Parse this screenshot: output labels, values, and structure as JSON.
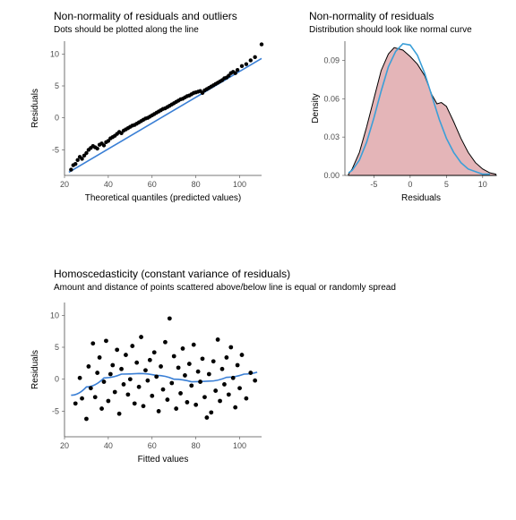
{
  "qq": {
    "type": "scatter",
    "title": "Non-normality of residuals and outliers",
    "subtitle": "Dots should be plotted along the line",
    "xlabel": "Theoretical quantiles (predicted values)",
    "ylabel": "Residuals",
    "xlim": [
      20,
      110
    ],
    "ylim": [
      -9,
      12
    ],
    "xticks": [
      20,
      40,
      60,
      80,
      100
    ],
    "yticks": [
      -5,
      0,
      5,
      10
    ],
    "point_color": "#000000",
    "point_size": 2.2,
    "line_color": "#3a7fd5",
    "line_width": 1.6,
    "background": "#ffffff",
    "grid_color": "#ffffff",
    "points": [
      [
        23,
        -8.1
      ],
      [
        24,
        -7.4
      ],
      [
        25,
        -7.2
      ],
      [
        26,
        -6.6
      ],
      [
        27,
        -6.1
      ],
      [
        28,
        -6.4
      ],
      [
        29,
        -5.9
      ],
      [
        30,
        -5.5
      ],
      [
        31,
        -5.0
      ],
      [
        32,
        -4.7
      ],
      [
        33,
        -4.4
      ],
      [
        34,
        -4.6
      ],
      [
        35,
        -4.8
      ],
      [
        36,
        -4.2
      ],
      [
        37,
        -4.0
      ],
      [
        38,
        -4.3
      ],
      [
        39,
        -3.8
      ],
      [
        40,
        -3.6
      ],
      [
        41,
        -3.2
      ],
      [
        42,
        -3.0
      ],
      [
        43,
        -2.8
      ],
      [
        44,
        -2.5
      ],
      [
        45,
        -2.2
      ],
      [
        46,
        -2.4
      ],
      [
        47,
        -2.0
      ],
      [
        48,
        -1.8
      ],
      [
        49,
        -1.6
      ],
      [
        50,
        -1.4
      ],
      [
        51,
        -1.2
      ],
      [
        52,
        -1.1
      ],
      [
        53,
        -0.9
      ],
      [
        54,
        -0.7
      ],
      [
        55,
        -0.5
      ],
      [
        56,
        -0.3
      ],
      [
        57,
        -0.1
      ],
      [
        58,
        0.0
      ],
      [
        59,
        0.2
      ],
      [
        60,
        0.4
      ],
      [
        61,
        0.6
      ],
      [
        62,
        0.8
      ],
      [
        63,
        1.0
      ],
      [
        64,
        1.2
      ],
      [
        65,
        1.4
      ],
      [
        66,
        1.5
      ],
      [
        67,
        1.7
      ],
      [
        68,
        1.9
      ],
      [
        69,
        2.1
      ],
      [
        70,
        2.3
      ],
      [
        71,
        2.5
      ],
      [
        72,
        2.7
      ],
      [
        73,
        2.9
      ],
      [
        74,
        3.0
      ],
      [
        75,
        3.2
      ],
      [
        76,
        3.4
      ],
      [
        77,
        3.5
      ],
      [
        78,
        3.7
      ],
      [
        79,
        3.9
      ],
      [
        80,
        4.0
      ],
      [
        81,
        4.1
      ],
      [
        82,
        4.2
      ],
      [
        83,
        3.9
      ],
      [
        84,
        4.3
      ],
      [
        85,
        4.5
      ],
      [
        86,
        4.7
      ],
      [
        87,
        4.9
      ],
      [
        88,
        5.1
      ],
      [
        89,
        5.3
      ],
      [
        90,
        5.5
      ],
      [
        91,
        5.7
      ],
      [
        92,
        5.9
      ],
      [
        93,
        6.2
      ],
      [
        94,
        6.3
      ],
      [
        95,
        6.6
      ],
      [
        96,
        7.0
      ],
      [
        97,
        7.2
      ],
      [
        98,
        7.0
      ],
      [
        99,
        7.5
      ],
      [
        101,
        8.1
      ],
      [
        103,
        8.4
      ],
      [
        105,
        9.0
      ],
      [
        107,
        9.5
      ],
      [
        110,
        11.5
      ]
    ],
    "line": [
      [
        22,
        -8.5
      ],
      [
        110,
        9.3
      ]
    ]
  },
  "density": {
    "type": "density",
    "title": "Non-normality of residuals",
    "subtitle": "Distribution should look like normal curve",
    "xlabel": "Residuals",
    "ylabel": "Density",
    "xlim": [
      -9,
      12
    ],
    "ylim": [
      0,
      0.105
    ],
    "xticks": [
      -5,
      0,
      5,
      10
    ],
    "yticks": [
      0.0,
      0.03,
      0.06,
      0.09
    ],
    "fill_color": "#e4b5b8",
    "fill_outline": "#000000",
    "curve_color": "#3a9fd8",
    "curve_width": 1.6,
    "background": "#ffffff",
    "density_pts": [
      [
        -8.5,
        0.001
      ],
      [
        -8,
        0.005
      ],
      [
        -7,
        0.018
      ],
      [
        -6,
        0.038
      ],
      [
        -5,
        0.06
      ],
      [
        -4,
        0.082
      ],
      [
        -3,
        0.095
      ],
      [
        -2.2,
        0.1
      ],
      [
        -1,
        0.098
      ],
      [
        0,
        0.093
      ],
      [
        1,
        0.087
      ],
      [
        2,
        0.078
      ],
      [
        3,
        0.063
      ],
      [
        3.7,
        0.056
      ],
      [
        4.3,
        0.057
      ],
      [
        5,
        0.054
      ],
      [
        6,
        0.042
      ],
      [
        7,
        0.029
      ],
      [
        8,
        0.018
      ],
      [
        9,
        0.01
      ],
      [
        10,
        0.005
      ],
      [
        11,
        0.002
      ],
      [
        11.8,
        0.001
      ]
    ],
    "normal_pts": [
      [
        -8.5,
        0.002
      ],
      [
        -8,
        0.004
      ],
      [
        -7,
        0.012
      ],
      [
        -6,
        0.026
      ],
      [
        -5,
        0.045
      ],
      [
        -4,
        0.066
      ],
      [
        -3,
        0.085
      ],
      [
        -2,
        0.097
      ],
      [
        -1,
        0.103
      ],
      [
        0,
        0.102
      ],
      [
        1,
        0.094
      ],
      [
        2,
        0.08
      ],
      [
        3,
        0.062
      ],
      [
        4,
        0.044
      ],
      [
        5,
        0.029
      ],
      [
        6,
        0.018
      ],
      [
        7,
        0.01
      ],
      [
        8,
        0.005
      ],
      [
        9,
        0.003
      ],
      [
        10,
        0.001
      ],
      [
        11,
        0.001
      ]
    ]
  },
  "homo": {
    "type": "scatter",
    "title": "Homoscedasticity (constant variance of residuals)",
    "subtitle": "Amount and distance of points scattered above/below line is equal or randomly spread",
    "xlabel": "Fitted values",
    "ylabel": "Residuals",
    "xlim": [
      20,
      110
    ],
    "ylim": [
      -9,
      12
    ],
    "xticks": [
      20,
      40,
      60,
      80,
      100
    ],
    "yticks": [
      -5,
      0,
      5,
      10
    ],
    "point_color": "#000000",
    "point_size": 2.4,
    "line_color": "#3a7fd5",
    "line_width": 1.6,
    "background": "#ffffff",
    "points": [
      [
        25,
        -3.8
      ],
      [
        27,
        0.2
      ],
      [
        28,
        -3.0
      ],
      [
        30,
        -6.2
      ],
      [
        31,
        2.0
      ],
      [
        32,
        -1.4
      ],
      [
        33,
        5.6
      ],
      [
        34,
        -2.8
      ],
      [
        35,
        1.0
      ],
      [
        36,
        3.4
      ],
      [
        37,
        -4.6
      ],
      [
        38,
        -0.4
      ],
      [
        39,
        6.0
      ],
      [
        40,
        -3.4
      ],
      [
        41,
        0.8
      ],
      [
        42,
        2.2
      ],
      [
        43,
        -2.0
      ],
      [
        44,
        4.6
      ],
      [
        45,
        -5.4
      ],
      [
        46,
        1.6
      ],
      [
        47,
        -0.8
      ],
      [
        48,
        3.8
      ],
      [
        49,
        -2.4
      ],
      [
        50,
        0.0
      ],
      [
        51,
        5.2
      ],
      [
        52,
        -3.8
      ],
      [
        53,
        2.6
      ],
      [
        54,
        -1.2
      ],
      [
        55,
        6.6
      ],
      [
        56,
        -4.2
      ],
      [
        57,
        1.4
      ],
      [
        58,
        -0.2
      ],
      [
        59,
        3.0
      ],
      [
        60,
        -2.6
      ],
      [
        61,
        4.2
      ],
      [
        62,
        0.4
      ],
      [
        63,
        -5.0
      ],
      [
        64,
        2.0
      ],
      [
        65,
        -1.6
      ],
      [
        66,
        5.8
      ],
      [
        67,
        -3.2
      ],
      [
        68,
        9.5
      ],
      [
        69,
        -0.6
      ],
      [
        70,
        3.6
      ],
      [
        71,
        -4.6
      ],
      [
        72,
        1.8
      ],
      [
        73,
        -2.2
      ],
      [
        74,
        4.8
      ],
      [
        75,
        0.6
      ],
      [
        76,
        -3.6
      ],
      [
        77,
        2.4
      ],
      [
        78,
        -1.0
      ],
      [
        79,
        5.4
      ],
      [
        80,
        -4.0
      ],
      [
        81,
        1.2
      ],
      [
        82,
        -0.4
      ],
      [
        83,
        3.2
      ],
      [
        84,
        -2.8
      ],
      [
        85,
        -6.0
      ],
      [
        86,
        0.8
      ],
      [
        87,
        -5.2
      ],
      [
        88,
        2.8
      ],
      [
        89,
        -1.8
      ],
      [
        90,
        6.2
      ],
      [
        91,
        -3.4
      ],
      [
        92,
        1.6
      ],
      [
        93,
        -0.8
      ],
      [
        94,
        3.4
      ],
      [
        95,
        -2.4
      ],
      [
        96,
        5.0
      ],
      [
        97,
        0.2
      ],
      [
        98,
        -4.4
      ],
      [
        99,
        2.2
      ],
      [
        100,
        -1.4
      ],
      [
        101,
        3.8
      ],
      [
        103,
        -3.0
      ],
      [
        105,
        1.0
      ],
      [
        107,
        -0.2
      ]
    ],
    "smooth": [
      [
        23,
        -2.5
      ],
      [
        30,
        -1.2
      ],
      [
        38,
        0.2
      ],
      [
        46,
        0.8
      ],
      [
        54,
        0.9
      ],
      [
        62,
        0.6
      ],
      [
        70,
        0.0
      ],
      [
        78,
        -0.4
      ],
      [
        86,
        -0.3
      ],
      [
        94,
        0.3
      ],
      [
        102,
        0.8
      ],
      [
        108,
        1.1
      ]
    ]
  }
}
